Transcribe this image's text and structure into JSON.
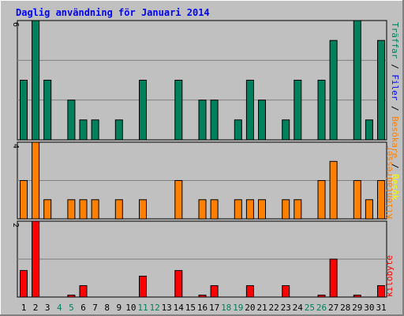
{
  "chart_data": [
    {
      "type": "bar",
      "title": "Daglig användning för Januari 2014",
      "categories": [
        "1",
        "2",
        "3",
        "4",
        "5",
        "6",
        "7",
        "8",
        "9",
        "10",
        "11",
        "12",
        "13",
        "14",
        "15",
        "16",
        "17",
        "18",
        "19",
        "20",
        "21",
        "22",
        "23",
        "24",
        "25",
        "26",
        "27",
        "28",
        "29",
        "30",
        "31"
      ],
      "weekend_days": [
        "4",
        "5",
        "11",
        "12",
        "18",
        "19",
        "25",
        "26"
      ],
      "legend": [
        "Träffar",
        "Filer",
        "Besökare",
        "Besök"
      ],
      "legend_colors": [
        "#00805c",
        "#0000ff",
        "#ff8000",
        "#ffff00"
      ],
      "series": [
        {
          "name": "Träffar",
          "color": "#00805c",
          "values": [
            3,
            6,
            3,
            0,
            2,
            1,
            1,
            0,
            1,
            0,
            3,
            0,
            0,
            3,
            0,
            2,
            2,
            0,
            1,
            3,
            2,
            0,
            1,
            3,
            0,
            3,
            5,
            0,
            6,
            1,
            5
          ]
        }
      ],
      "ymax_label": "6",
      "ylim": [
        0,
        6
      ]
    },
    {
      "type": "bar",
      "legend": [
        "Klientadresser"
      ],
      "legend_colors": [
        "#ff8000"
      ],
      "series": [
        {
          "name": "Klientadresser",
          "color": "#ff8000",
          "values": [
            2,
            4,
            1,
            0,
            1,
            1,
            1,
            0,
            1,
            0,
            1,
            0,
            0,
            2,
            0,
            1,
            1,
            0,
            1,
            1,
            1,
            0,
            1,
            1,
            0,
            2,
            3,
            0,
            2,
            1,
            2
          ]
        }
      ],
      "ymax_label": "4",
      "ylim": [
        0,
        4
      ]
    },
    {
      "type": "bar",
      "legend": [
        "kilobyte"
      ],
      "legend_colors": [
        "#ff0000"
      ],
      "series": [
        {
          "name": "kilobyte",
          "color": "#ff0000",
          "values": [
            0.7,
            2,
            0,
            0,
            0.05,
            0.3,
            0,
            0,
            0,
            0,
            0.55,
            0,
            0,
            0.7,
            0,
            0.05,
            0.3,
            0,
            0,
            0.3,
            0,
            0,
            0.3,
            0,
            0,
            0.05,
            1,
            0,
            0.05,
            0,
            0.3
          ]
        }
      ],
      "ymax_label": "2",
      "ylim": [
        0,
        2
      ]
    }
  ],
  "colors": {
    "plot_bg": "#c0c0c0",
    "weekday_label": "#000000",
    "weekend_label": "#00805c",
    "title": "#0000ff",
    "separator": "#000000"
  }
}
